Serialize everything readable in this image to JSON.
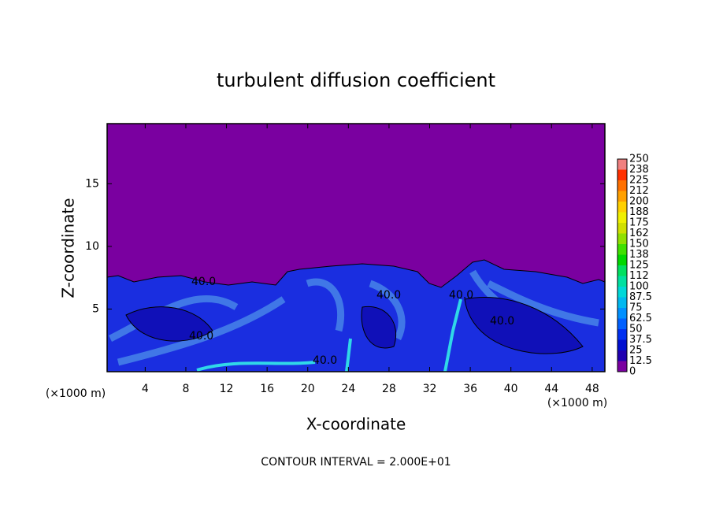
{
  "chart_data": {
    "type": "contour",
    "title": "turbulent diffusion coefficient",
    "xlabel": "X-coordinate",
    "ylabel": "Z-coordinate",
    "x_unit_label": "(×1000 m)",
    "footer": "CONTOUR INTERVAL = 2.000E+01",
    "xlim": [
      0.25,
      49.25
    ],
    "xticks": [
      4,
      8,
      12,
      16,
      20,
      24,
      28,
      32,
      36,
      40,
      44,
      48
    ],
    "ylim": [
      0,
      19.8
    ],
    "yticks": [
      5,
      10,
      15
    ],
    "contour_labels": [
      "40.0",
      "40.0",
      "40.0",
      "40.0",
      "40.0",
      "40.0"
    ],
    "colorbar": {
      "levels": [
        0,
        12.5,
        25,
        37.5,
        50,
        62.5,
        75,
        87.5,
        100,
        112,
        125,
        138,
        150,
        162,
        175,
        188,
        200,
        212,
        225,
        238,
        250
      ],
      "colors": [
        "#7a00a0",
        "#2000b0",
        "#0010d0",
        "#0030f0",
        "#0060ff",
        "#0090ff",
        "#00b8f0",
        "#00d8d8",
        "#00e0a0",
        "#00e060",
        "#00d800",
        "#40e000",
        "#90e000",
        "#d0e000",
        "#f0f000",
        "#ffd000",
        "#ffa000",
        "#ff7000",
        "#ff3000",
        "#f08080"
      ]
    }
  }
}
